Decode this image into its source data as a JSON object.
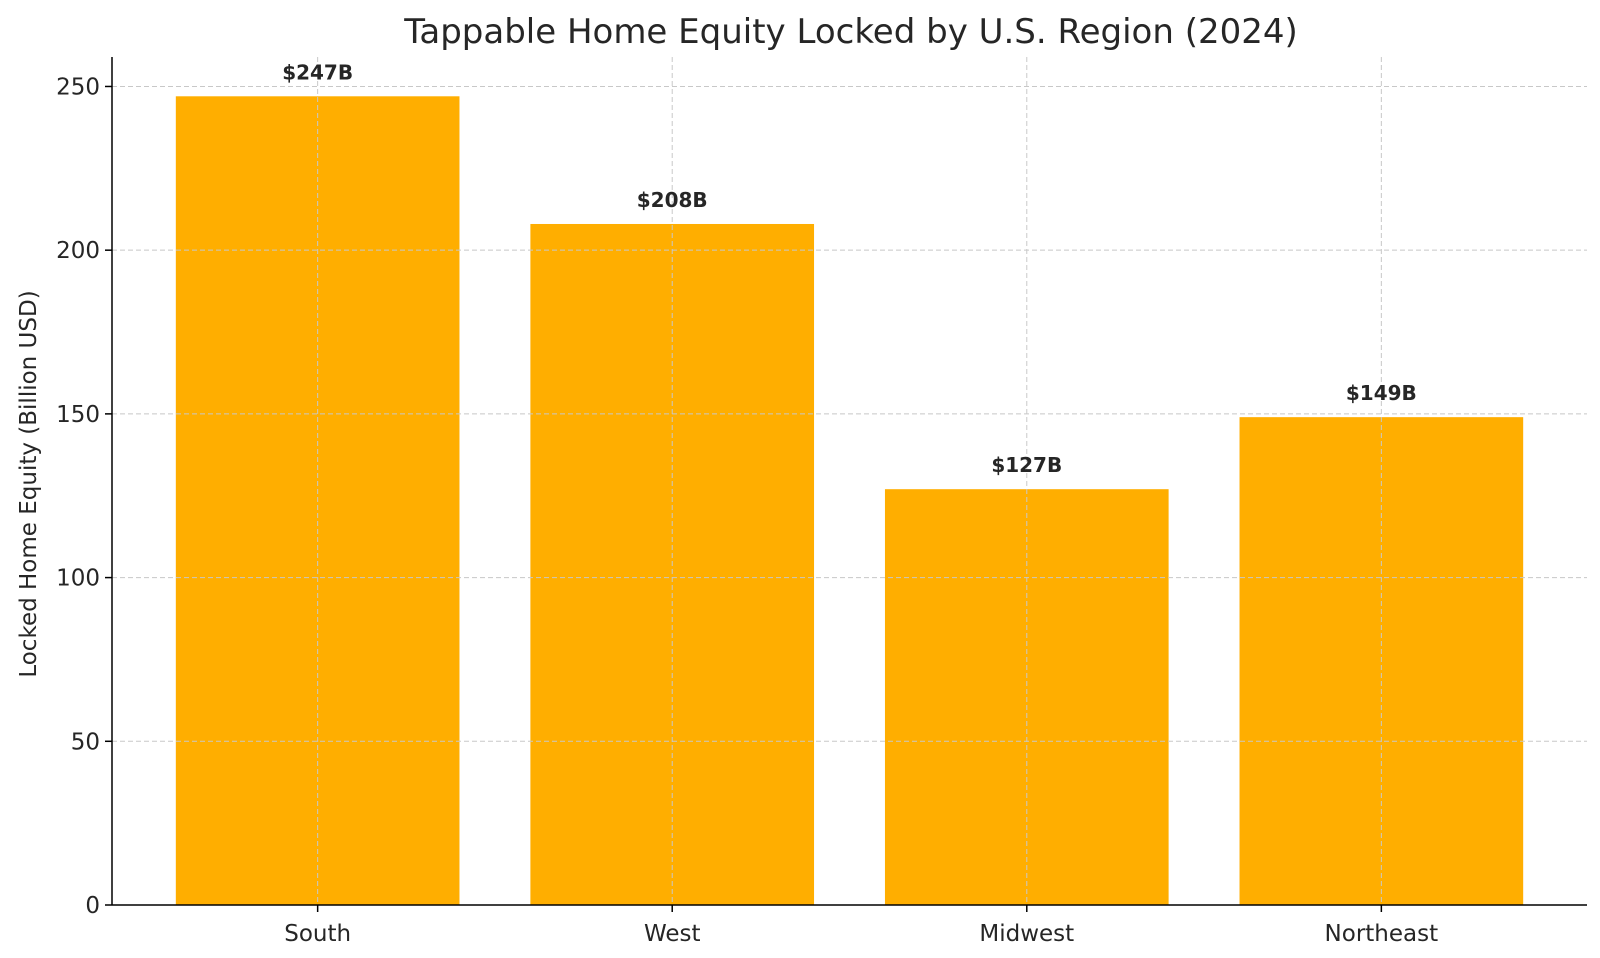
{
  "chart_data": {
    "type": "bar",
    "title": "Tappable Home Equity Locked by U.S. Region (2024)",
    "xlabel": "",
    "ylabel": "Locked Home Equity (Billion USD)",
    "categories": [
      "South",
      "West",
      "Midwest",
      "Northeast"
    ],
    "values": [
      247,
      208,
      127,
      149
    ],
    "data_labels": [
      "$247B",
      "$208B",
      "$127B",
      "$149B"
    ],
    "yticks": [
      0,
      50,
      100,
      150,
      200,
      250
    ],
    "ylim": [
      0,
      259
    ],
    "grid": true,
    "legend": "none",
    "colors": {
      "bar": "#FFAE00",
      "grid": "#c8c8c8",
      "axis": "#000000",
      "text": "#262626"
    }
  }
}
